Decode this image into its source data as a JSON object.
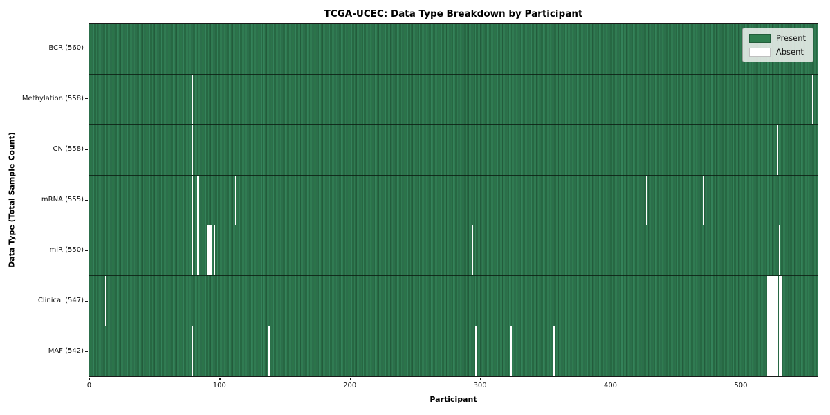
{
  "chart_data": {
    "type": "heatmap",
    "title": "TCGA-UCEC: Data Type Breakdown by Participant",
    "xlabel": "Participant",
    "ylabel": "Data Type (Total Sample Count)",
    "n_participants": 560,
    "xlim": [
      -0.5,
      559.5
    ],
    "x_ticks": [
      0,
      100,
      200,
      300,
      400,
      500
    ],
    "grid": false,
    "legend_position": "upper right",
    "cell_states": [
      "Present",
      "Absent"
    ],
    "rows": [
      {
        "name": "bcr",
        "label": "BCR (560)",
        "present_count": 560,
        "absent_participants": []
      },
      {
        "name": "methylation",
        "label": "Methylation (558)",
        "present_count": 558,
        "absent_participants": [
          79,
          556
        ]
      },
      {
        "name": "cn",
        "label": "CN (558)",
        "present_count": 558,
        "absent_participants": [
          79,
          529
        ]
      },
      {
        "name": "mrna",
        "label": "mRNA (555)",
        "present_count": 555,
        "absent_participants": [
          79,
          83,
          112,
          428,
          472
        ]
      },
      {
        "name": "mir",
        "label": "miR (550)",
        "present_count": 550,
        "absent_participants": [
          79,
          83,
          87,
          91,
          92,
          93,
          94,
          96,
          294,
          530
        ]
      },
      {
        "name": "clinical",
        "label": "Clinical (547)",
        "present_count": 547,
        "absent_participants": [
          12,
          521,
          522,
          523,
          524,
          525,
          526,
          527,
          528,
          529,
          530,
          531,
          532
        ]
      },
      {
        "name": "maf",
        "label": "MAF (542)",
        "present_count": 542,
        "absent_participants": [
          79,
          138,
          270,
          297,
          324,
          357,
          521,
          522,
          523,
          524,
          525,
          526,
          527,
          528,
          529,
          530,
          531,
          532
        ]
      }
    ],
    "legend_entries": [
      {
        "label": "Present",
        "color": "#2e7d4e"
      },
      {
        "label": "Absent",
        "color": "#ffffff"
      }
    ]
  },
  "colors": {
    "present_green": "#2e7d4e",
    "present_green_dark_stripe": "#235c3c",
    "absent_white": "#ffffff",
    "row_separator": "#0a190f",
    "spine": "#1a1a1a",
    "legend_background": "#eceff0"
  }
}
